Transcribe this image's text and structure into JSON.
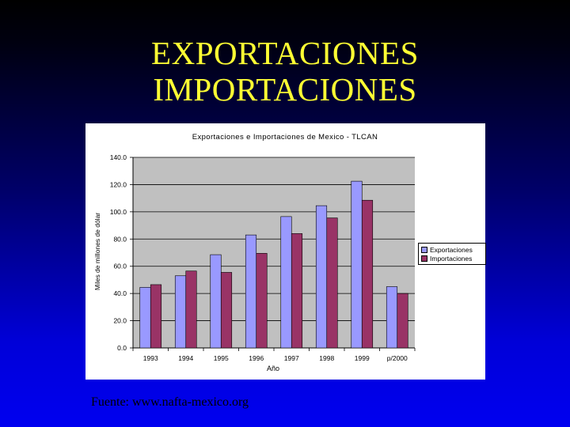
{
  "slide": {
    "title_line1": "EXPORTACIONES",
    "title_line2": "IMPORTACIONES",
    "source": "Fuente: www.nafta-mexico.org"
  },
  "colors": {
    "exportaciones": "#9999ff",
    "importaciones": "#993366",
    "plot_bg": "#c0c0c0",
    "title_text": "#ffff33"
  },
  "chart_data": {
    "type": "bar",
    "title": "Exportaciones e Importaciones de Mexico - TLCAN",
    "xlabel": "Año",
    "ylabel": "Miles de millones de dólar",
    "categories": [
      "1993",
      "1994",
      "1995",
      "1996",
      "1997",
      "1998",
      "1999",
      "p/2000"
    ],
    "series": [
      {
        "name": "Exportaciones",
        "values": [
          44.5,
          53.0,
          68.5,
          83.0,
          96.5,
          104.5,
          122.5,
          45.0
        ]
      },
      {
        "name": "Importaciones",
        "values": [
          46.5,
          56.5,
          55.5,
          69.5,
          84.0,
          95.5,
          108.5,
          40.0
        ]
      }
    ],
    "ylim": [
      0,
      140
    ],
    "yticks": [
      "0.0",
      "20.0",
      "40.0",
      "60.0",
      "80.0",
      "100.0",
      "120.0",
      "140.0"
    ],
    "grid": true,
    "legend_position": "right"
  }
}
